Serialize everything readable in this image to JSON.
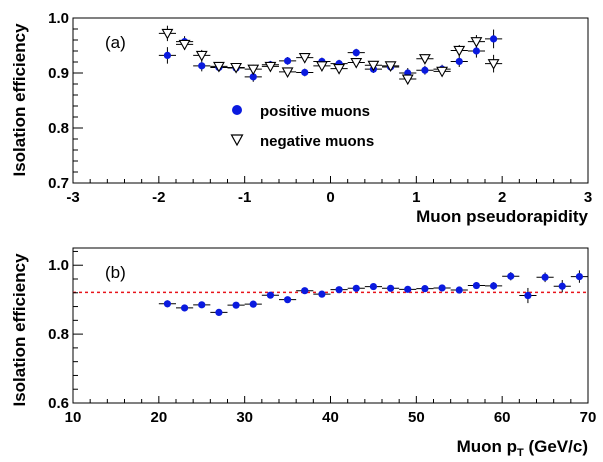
{
  "colors": {
    "positive": "#0a1adf",
    "negative_fill": "#ffffff",
    "reference_line": "#e8141b",
    "axis": "#000000"
  },
  "chart_data": [
    {
      "type": "scatter",
      "panel_label": "(a)",
      "xlabel": "Muon pseudorapidity",
      "ylabel": "Isolation efficiency",
      "xlim": [
        -3,
        3
      ],
      "ylim": [
        0.7,
        1.0
      ],
      "x_ticks": [
        -3,
        -2,
        -1,
        0,
        1,
        2,
        3
      ],
      "x_tick_labels": [
        "-3",
        "-2",
        "-1",
        "0",
        "1",
        "2",
        "3"
      ],
      "y_ticks": [
        0.7,
        0.8,
        0.9,
        1.0
      ],
      "y_tick_labels": [
        "0.7",
        "0.8",
        "0.9",
        "1.0"
      ],
      "legend": {
        "position": "center",
        "entries": [
          "positive muons",
          "negative muons"
        ]
      },
      "series": [
        {
          "name": "positive muons",
          "marker": "circle",
          "x_err": 0.1,
          "points": [
            {
              "x": -1.9,
              "y": 0.932,
              "yerr": 0.015
            },
            {
              "x": -1.7,
              "y": 0.957,
              "yerr": 0.01
            },
            {
              "x": -1.5,
              "y": 0.913,
              "yerr": 0.01
            },
            {
              "x": -1.3,
              "y": 0.91,
              "yerr": 0.008
            },
            {
              "x": -1.1,
              "y": 0.909,
              "yerr": 0.008
            },
            {
              "x": -0.9,
              "y": 0.893,
              "yerr": 0.009
            },
            {
              "x": -0.7,
              "y": 0.915,
              "yerr": 0.007
            },
            {
              "x": -0.5,
              "y": 0.922,
              "yerr": 0.007
            },
            {
              "x": -0.3,
              "y": 0.901,
              "yerr": 0.007
            },
            {
              "x": -0.1,
              "y": 0.921,
              "yerr": 0.007
            },
            {
              "x": 0.1,
              "y": 0.917,
              "yerr": 0.007
            },
            {
              "x": 0.3,
              "y": 0.937,
              "yerr": 0.007
            },
            {
              "x": 0.5,
              "y": 0.907,
              "yerr": 0.007
            },
            {
              "x": 0.7,
              "y": 0.911,
              "yerr": 0.007
            },
            {
              "x": 0.9,
              "y": 0.9,
              "yerr": 0.009
            },
            {
              "x": 1.1,
              "y": 0.905,
              "yerr": 0.008
            },
            {
              "x": 1.3,
              "y": 0.907,
              "yerr": 0.008
            },
            {
              "x": 1.5,
              "y": 0.921,
              "yerr": 0.01
            },
            {
              "x": 1.7,
              "y": 0.94,
              "yerr": 0.012
            },
            {
              "x": 1.9,
              "y": 0.962,
              "yerr": 0.017
            }
          ]
        },
        {
          "name": "negative muons",
          "marker": "triangle-down-open",
          "x_err": 0.1,
          "points": [
            {
              "x": -1.9,
              "y": 0.972,
              "yerr": 0.014
            },
            {
              "x": -1.7,
              "y": 0.952,
              "yerr": 0.01
            },
            {
              "x": -1.5,
              "y": 0.932,
              "yerr": 0.01
            },
            {
              "x": -1.3,
              "y": 0.912,
              "yerr": 0.008
            },
            {
              "x": -1.1,
              "y": 0.91,
              "yerr": 0.008
            },
            {
              "x": -0.9,
              "y": 0.907,
              "yerr": 0.008
            },
            {
              "x": -0.7,
              "y": 0.912,
              "yerr": 0.007
            },
            {
              "x": -0.5,
              "y": 0.902,
              "yerr": 0.007
            },
            {
              "x": -0.3,
              "y": 0.928,
              "yerr": 0.007
            },
            {
              "x": -0.1,
              "y": 0.913,
              "yerr": 0.007
            },
            {
              "x": 0.1,
              "y": 0.908,
              "yerr": 0.007
            },
            {
              "x": 0.3,
              "y": 0.919,
              "yerr": 0.007
            },
            {
              "x": 0.5,
              "y": 0.914,
              "yerr": 0.007
            },
            {
              "x": 0.7,
              "y": 0.913,
              "yerr": 0.007
            },
            {
              "x": 0.9,
              "y": 0.889,
              "yerr": 0.009
            },
            {
              "x": 1.1,
              "y": 0.926,
              "yerr": 0.008
            },
            {
              "x": 1.3,
              "y": 0.903,
              "yerr": 0.008
            },
            {
              "x": 1.5,
              "y": 0.941,
              "yerr": 0.01
            },
            {
              "x": 1.7,
              "y": 0.957,
              "yerr": 0.012
            },
            {
              "x": 1.9,
              "y": 0.917,
              "yerr": 0.016
            }
          ]
        }
      ]
    },
    {
      "type": "scatter",
      "panel_label": "(b)",
      "xlabel_main": "Muon p",
      "xlabel_sub": "T",
      "xlabel_tail": " (GeV/c)",
      "ylabel": "Isolation efficiency",
      "xlim": [
        10,
        70
      ],
      "ylim": [
        0.6,
        1.05
      ],
      "x_ticks": [
        10,
        20,
        30,
        40,
        50,
        60,
        70
      ],
      "x_tick_labels": [
        "10",
        "20",
        "30",
        "40",
        "50",
        "60",
        "70"
      ],
      "y_ticks": [
        0.6,
        0.8,
        1.0
      ],
      "y_tick_labels": [
        "0.6",
        "0.8",
        "1.0"
      ],
      "reference_line": {
        "y": 0.921,
        "style": "dashed"
      },
      "series": [
        {
          "marker": "circle",
          "x_err": 1,
          "points": [
            {
              "x": 21,
              "y": 0.888,
              "yerr": 0.01
            },
            {
              "x": 23,
              "y": 0.876,
              "yerr": 0.01
            },
            {
              "x": 25,
              "y": 0.885,
              "yerr": 0.008
            },
            {
              "x": 27,
              "y": 0.863,
              "yerr": 0.008
            },
            {
              "x": 29,
              "y": 0.884,
              "yerr": 0.008
            },
            {
              "x": 31,
              "y": 0.887,
              "yerr": 0.007
            },
            {
              "x": 33,
              "y": 0.913,
              "yerr": 0.007
            },
            {
              "x": 35,
              "y": 0.9,
              "yerr": 0.007
            },
            {
              "x": 37,
              "y": 0.926,
              "yerr": 0.006
            },
            {
              "x": 39,
              "y": 0.916,
              "yerr": 0.006
            },
            {
              "x": 41,
              "y": 0.929,
              "yerr": 0.006
            },
            {
              "x": 43,
              "y": 0.933,
              "yerr": 0.006
            },
            {
              "x": 45,
              "y": 0.938,
              "yerr": 0.006
            },
            {
              "x": 47,
              "y": 0.933,
              "yerr": 0.006
            },
            {
              "x": 49,
              "y": 0.93,
              "yerr": 0.007
            },
            {
              "x": 51,
              "y": 0.932,
              "yerr": 0.007
            },
            {
              "x": 53,
              "y": 0.934,
              "yerr": 0.008
            },
            {
              "x": 55,
              "y": 0.928,
              "yerr": 0.009
            },
            {
              "x": 57,
              "y": 0.941,
              "yerr": 0.01
            },
            {
              "x": 59,
              "y": 0.94,
              "yerr": 0.011
            },
            {
              "x": 61,
              "y": 0.968,
              "yerr": 0.012
            },
            {
              "x": 63,
              "y": 0.912,
              "yerr": 0.022
            },
            {
              "x": 65,
              "y": 0.965,
              "yerr": 0.014
            },
            {
              "x": 67,
              "y": 0.939,
              "yerr": 0.018
            },
            {
              "x": 69,
              "y": 0.967,
              "yerr": 0.018
            }
          ]
        }
      ]
    }
  ]
}
